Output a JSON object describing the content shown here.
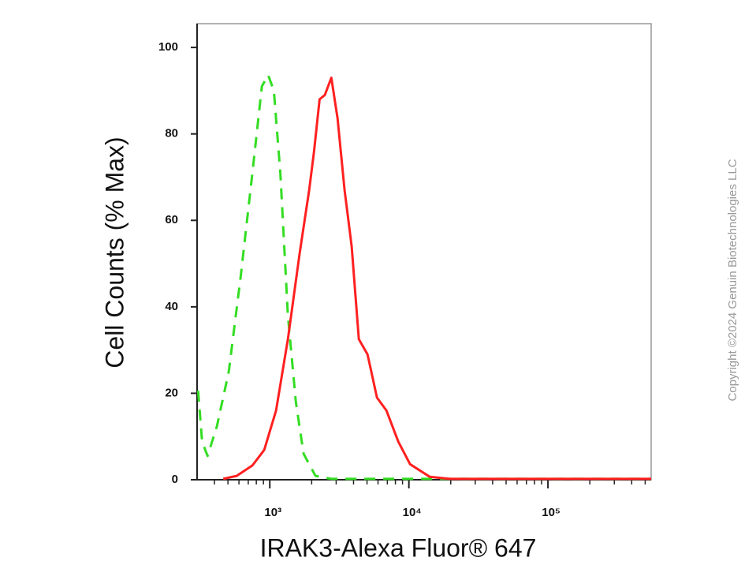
{
  "chart_data": {
    "type": "line",
    "xlabel": "IRAK3-Alexa Fluor® 647",
    "ylabel": "Cell Counts (% Max)",
    "watermark": "Copyright ©2024 Genuin Biotechnologies LLC",
    "xscale": "log",
    "xlim": [
      300,
      552000
    ],
    "ylim": [
      0,
      105.5
    ],
    "xticks": [
      {
        "value": 1000,
        "label": "10³"
      },
      {
        "value": 10000,
        "label": "10⁴"
      },
      {
        "value": 100000,
        "label": "10⁵"
      }
    ],
    "xminorticks": [
      400,
      500,
      600,
      700,
      800,
      900,
      2000,
      3000,
      4000,
      5000,
      6000,
      7000,
      8000,
      9000,
      20000,
      30000,
      40000,
      50000,
      60000,
      70000,
      80000,
      90000,
      200000,
      300000,
      400000,
      500000
    ],
    "yticks": [
      0,
      20,
      40,
      60,
      80,
      100
    ],
    "series": [
      {
        "color": "#ff2020",
        "line_style": "solid",
        "x": [
          463,
          578,
          750,
          912,
          1110,
          1350,
          1640,
          1920,
          2080,
          2280,
          2490,
          2770,
          3070,
          3450,
          3880,
          4370,
          5040,
          5900,
          6900,
          8400,
          10200,
          14100,
          19600,
          100000,
          552000
        ],
        "values": [
          0.2,
          0.9,
          3.3,
          6.9,
          16,
          32.5,
          52.5,
          67,
          76,
          88,
          89,
          93,
          83.6,
          67,
          54,
          32.5,
          29,
          19,
          16,
          8.8,
          3.6,
          0.7,
          0.2,
          0.2,
          0.2
        ]
      },
      {
        "color": "#33dd22",
        "line_style": "dashed",
        "x": [
          305,
          326,
          357,
          417,
          507,
          617,
          750,
          877,
          974,
          1070,
          1190,
          1350,
          1540,
          1750,
          2130,
          2770,
          100000,
          552000
        ],
        "values": [
          20.6,
          8.8,
          5.5,
          12.4,
          25,
          47,
          71,
          91,
          93.6,
          90,
          71,
          38,
          18,
          6,
          0.9,
          0.2,
          0.2,
          0.2
        ]
      }
    ]
  }
}
